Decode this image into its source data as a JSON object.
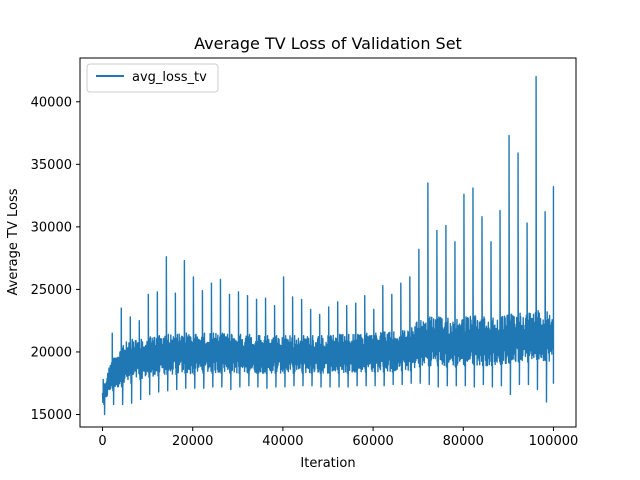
{
  "chart_data": {
    "type": "line",
    "title": "Average TV Loss of Validation Set",
    "xlabel": "Iteration",
    "ylabel": "Average TV Loss",
    "xlim": [
      -5000,
      105000
    ],
    "ylim": [
      14000,
      43500
    ],
    "xticks": [
      0,
      20000,
      40000,
      60000,
      80000,
      100000
    ],
    "xtick_labels": [
      "0",
      "20000",
      "40000",
      "60000",
      "80000",
      "100000"
    ],
    "yticks": [
      15000,
      20000,
      25000,
      30000,
      35000,
      40000
    ],
    "ytick_labels": [
      "15000",
      "20000",
      "25000",
      "30000",
      "35000",
      "40000"
    ],
    "grid": false,
    "legend_position": "upper-left",
    "series": [
      {
        "name": "avg_loss_tv",
        "color": "#1f77b4",
        "x": [
          0,
          2000,
          4000,
          6000,
          8000,
          10000,
          12000,
          14000,
          16000,
          18000,
          20000,
          22000,
          24000,
          26000,
          28000,
          30000,
          32000,
          34000,
          36000,
          38000,
          40000,
          42000,
          44000,
          46000,
          48000,
          50000,
          52000,
          54000,
          56000,
          58000,
          60000,
          62000,
          64000,
          66000,
          68000,
          70000,
          72000,
          74000,
          76000,
          78000,
          80000,
          82000,
          84000,
          86000,
          88000,
          90000,
          92000,
          94000,
          96000,
          98000,
          100000
        ],
        "min": [
          15000,
          15800,
          15800,
          15900,
          16200,
          16600,
          16800,
          16900,
          17000,
          17100,
          17100,
          17100,
          17200,
          17200,
          17000,
          17200,
          17300,
          17200,
          17100,
          17200,
          17200,
          17300,
          17300,
          17300,
          17200,
          17200,
          17200,
          17200,
          17300,
          17300,
          17300,
          17300,
          17400,
          17400,
          17500,
          17500,
          17400,
          17200,
          17300,
          17300,
          17300,
          17200,
          17400,
          17200,
          17300,
          16600,
          17400,
          17400,
          17000,
          16000,
          17500
        ],
        "max": [
          17800,
          21500,
          23500,
          22800,
          22500,
          24600,
          24800,
          27600,
          24700,
          27300,
          26000,
          24900,
          25500,
          25800,
          24600,
          24800,
          24500,
          24200,
          24300,
          23700,
          26000,
          24400,
          24200,
          23400,
          23000,
          23600,
          24000,
          23700,
          23900,
          24500,
          23400,
          25300,
          24600,
          25500,
          26000,
          28200,
          33500,
          29700,
          30100,
          28800,
          32600,
          33100,
          30800,
          28800,
          31300,
          37300,
          35900,
          30300,
          42000,
          31200,
          33200
        ],
        "typical_high": [
          17000,
          19500,
          20500,
          21000,
          21000,
          21200,
          21300,
          21400,
          21400,
          21500,
          21400,
          21500,
          21500,
          21500,
          21400,
          21400,
          21400,
          21300,
          21300,
          21300,
          21300,
          21300,
          21300,
          21300,
          21300,
          21300,
          21400,
          21400,
          21400,
          21500,
          21500,
          21600,
          21600,
          21700,
          21800,
          22500,
          22800,
          22800,
          22700,
          22600,
          22800,
          22900,
          22800,
          22700,
          22800,
          23000,
          23100,
          23100,
          23300,
          23200,
          23000
        ],
        "typical_low": [
          15800,
          16900,
          17200,
          17500,
          17800,
          18000,
          18100,
          18200,
          18200,
          18300,
          18200,
          18300,
          18300,
          18300,
          18300,
          18300,
          18300,
          18300,
          18300,
          18300,
          18300,
          18300,
          18300,
          18300,
          18300,
          18300,
          18300,
          18300,
          18400,
          18400,
          18400,
          18400,
          18400,
          18500,
          18500,
          18800,
          18900,
          18900,
          18800,
          18800,
          18900,
          19000,
          18900,
          18900,
          19000,
          19100,
          19200,
          19200,
          19400,
          19300,
          19200
        ]
      }
    ]
  }
}
